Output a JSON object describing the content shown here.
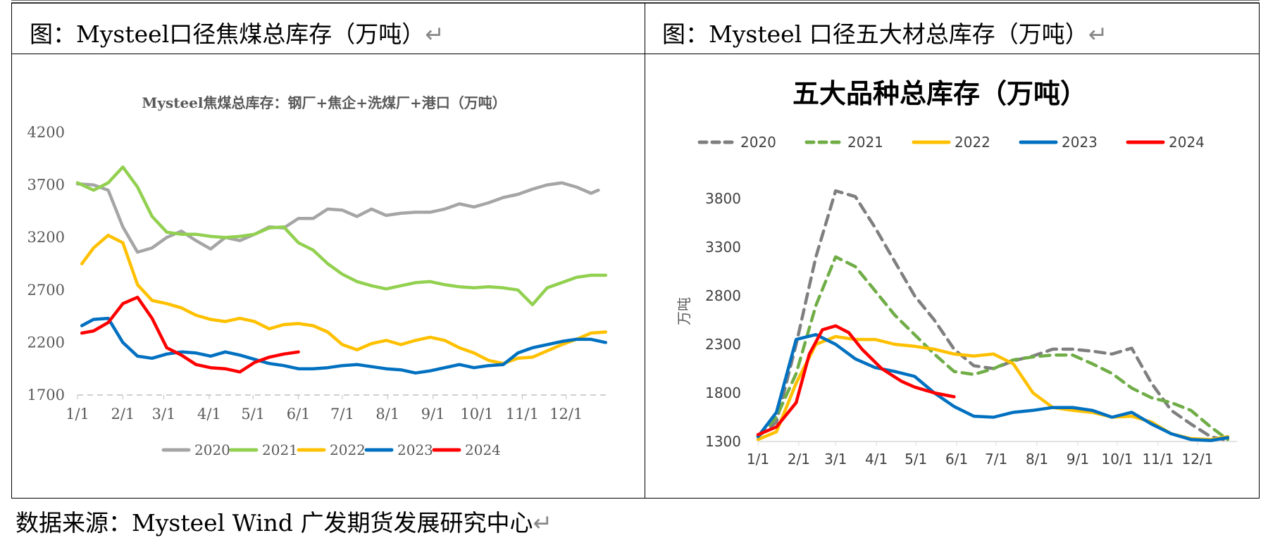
{
  "captions": {
    "left": "图：Mysteel口径焦煤总库存（万吨）",
    "right": "图：Mysteel 口径五大材总库存（万吨）",
    "source": "数据来源：Mysteel Wind 广发期货发展研究中心"
  },
  "return_mark": "↵",
  "chart_data": [
    {
      "type": "line",
      "title": "Mysteel焦煤总库存：钢厂+焦企+洗煤厂+港口（万吨）",
      "xlabel": "",
      "ylabel": "",
      "ylim": [
        1700,
        4200
      ],
      "yticks": [
        "4200",
        "3700",
        "3200",
        "2700",
        "2200",
        "1700"
      ],
      "xticks": [
        "1/1",
        "2/1",
        "3/1",
        "4/1",
        "5/1",
        "6/1",
        "7/1",
        "8/1",
        "9/1",
        "10/1",
        "11/1",
        "12/1"
      ],
      "grid": false,
      "legend": "bottom",
      "series": [
        {
          "name": "2020",
          "color": "#a5a5a5",
          "dash": false,
          "x": [
            1,
            12,
            22,
            32,
            42,
            52,
            62,
            72,
            82,
            92,
            102,
            112,
            122,
            132,
            142,
            152,
            162,
            172,
            182,
            192,
            202,
            212,
            222,
            232,
            242,
            252,
            262,
            272,
            282,
            292,
            302,
            312,
            322,
            332,
            342,
            352,
            357
          ],
          "y": [
            3710,
            3700,
            3650,
            3300,
            3060,
            3100,
            3200,
            3260,
            3170,
            3090,
            3200,
            3170,
            3230,
            3300,
            3290,
            3380,
            3380,
            3470,
            3460,
            3400,
            3470,
            3410,
            3430,
            3440,
            3440,
            3470,
            3520,
            3490,
            3530,
            3580,
            3610,
            3660,
            3700,
            3720,
            3680,
            3620,
            3650
          ]
        },
        {
          "name": "2021",
          "color": "#92d050",
          "dash": false,
          "x": [
            1,
            12,
            22,
            32,
            42,
            52,
            62,
            72,
            82,
            92,
            102,
            112,
            122,
            132,
            142,
            152,
            162,
            172,
            182,
            192,
            202,
            212,
            222,
            232,
            242,
            252,
            262,
            272,
            282,
            292,
            302,
            312,
            322,
            332,
            342,
            352,
            362
          ],
          "y": [
            3720,
            3650,
            3720,
            3870,
            3680,
            3400,
            3250,
            3230,
            3230,
            3210,
            3200,
            3210,
            3230,
            3290,
            3300,
            3150,
            3080,
            2950,
            2850,
            2780,
            2740,
            2710,
            2740,
            2770,
            2780,
            2750,
            2730,
            2720,
            2730,
            2720,
            2700,
            2560,
            2720,
            2770,
            2820,
            2840,
            2840
          ]
        },
        {
          "name": "2022",
          "color": "#ffc000",
          "dash": false,
          "x": [
            4,
            12,
            22,
            32,
            42,
            52,
            62,
            72,
            82,
            92,
            102,
            112,
            122,
            132,
            142,
            152,
            162,
            172,
            182,
            192,
            202,
            212,
            222,
            232,
            242,
            252,
            262,
            272,
            282,
            292,
            302,
            312,
            322,
            332,
            342,
            352,
            362
          ],
          "y": [
            2950,
            3100,
            3220,
            3150,
            2750,
            2600,
            2570,
            2530,
            2460,
            2420,
            2400,
            2430,
            2400,
            2330,
            2370,
            2380,
            2360,
            2300,
            2180,
            2130,
            2190,
            2220,
            2180,
            2220,
            2250,
            2220,
            2150,
            2100,
            2030,
            2000,
            2050,
            2060,
            2120,
            2180,
            2230,
            2290,
            2300
          ]
        },
        {
          "name": "2023",
          "color": "#0070c0",
          "dash": false,
          "x": [
            4,
            12,
            22,
            32,
            42,
            52,
            62,
            72,
            82,
            92,
            102,
            112,
            122,
            132,
            142,
            152,
            162,
            172,
            182,
            192,
            202,
            212,
            222,
            232,
            242,
            252,
            262,
            272,
            282,
            292,
            302,
            312,
            322,
            332,
            342,
            352,
            362
          ],
          "y": [
            2360,
            2420,
            2430,
            2200,
            2070,
            2050,
            2090,
            2110,
            2100,
            2070,
            2110,
            2080,
            2040,
            2000,
            1980,
            1950,
            1950,
            1960,
            1980,
            1990,
            1970,
            1950,
            1940,
            1910,
            1930,
            1960,
            1990,
            1960,
            1980,
            1990,
            2100,
            2150,
            2180,
            2210,
            2230,
            2230,
            2200
          ]
        },
        {
          "name": "2024",
          "color": "#ff0000",
          "dash": false,
          "x": [
            4,
            12,
            22,
            32,
            42,
            52,
            62,
            72,
            82,
            92,
            102,
            112,
            122,
            132,
            142,
            152
          ],
          "y": [
            2290,
            2310,
            2390,
            2570,
            2630,
            2430,
            2150,
            2080,
            1990,
            1960,
            1950,
            1920,
            2010,
            2060,
            2090,
            2110
          ]
        }
      ]
    },
    {
      "type": "line",
      "title": "五大品种总库存（万吨）",
      "xlabel": "",
      "ylabel": "万吨",
      "ylim": [
        1300,
        3800
      ],
      "yticks": [
        "3800",
        "3300",
        "2800",
        "2300",
        "1800",
        "1300"
      ],
      "xticks": [
        "1/1",
        "2/1",
        "3/1",
        "4/1",
        "5/1",
        "6/1",
        "7/1",
        "8/1",
        "9/1",
        "10/1",
        "11/1",
        "12/1"
      ],
      "grid": false,
      "legend": "top",
      "series": [
        {
          "name": "2020",
          "color": "#7f7f7f",
          "dash": true,
          "x": [
            1,
            15,
            30,
            45,
            60,
            75,
            90,
            105,
            120,
            135,
            150,
            165,
            180,
            195,
            210,
            225,
            240,
            255,
            270,
            285,
            300,
            315,
            330,
            345,
            358
          ],
          "y": [
            1350,
            1500,
            2300,
            3200,
            3880,
            3820,
            3500,
            3150,
            2800,
            2550,
            2250,
            2080,
            2050,
            2130,
            2180,
            2250,
            2250,
            2230,
            2200,
            2260,
            1900,
            1620,
            1480,
            1350,
            1310
          ]
        },
        {
          "name": "2021",
          "color": "#70ad47",
          "dash": true,
          "x": [
            1,
            15,
            30,
            45,
            60,
            75,
            90,
            105,
            120,
            135,
            150,
            165,
            180,
            195,
            210,
            225,
            240,
            255,
            270,
            285,
            300,
            315,
            330,
            345,
            358
          ],
          "y": [
            1350,
            1550,
            2000,
            2700,
            3200,
            3100,
            2850,
            2600,
            2400,
            2200,
            2020,
            1990,
            2050,
            2140,
            2170,
            2190,
            2190,
            2100,
            2000,
            1850,
            1750,
            1700,
            1620,
            1450,
            1320
          ]
        },
        {
          "name": "2022",
          "color": "#ffc000",
          "dash": false,
          "x": [
            1,
            15,
            30,
            45,
            60,
            75,
            90,
            105,
            120,
            135,
            150,
            165,
            180,
            195,
            210,
            225,
            240,
            255,
            270,
            285,
            300,
            315,
            330,
            345,
            358
          ],
          "y": [
            1320,
            1400,
            1900,
            2300,
            2380,
            2350,
            2350,
            2300,
            2280,
            2250,
            2200,
            2180,
            2200,
            2100,
            1800,
            1650,
            1620,
            1600,
            1550,
            1560,
            1500,
            1380,
            1330,
            1320,
            1350
          ]
        },
        {
          "name": "2023",
          "color": "#0070c0",
          "dash": false,
          "x": [
            1,
            15,
            30,
            45,
            60,
            75,
            90,
            105,
            120,
            135,
            150,
            165,
            180,
            195,
            210,
            225,
            240,
            255,
            270,
            285,
            300,
            315,
            330,
            345,
            358
          ],
          "y": [
            1350,
            1600,
            2350,
            2400,
            2300,
            2150,
            2060,
            2020,
            1970,
            1800,
            1660,
            1560,
            1550,
            1600,
            1620,
            1650,
            1650,
            1620,
            1550,
            1600,
            1480,
            1380,
            1320,
            1310,
            1340
          ]
        },
        {
          "name": "2024",
          "color": "#ff0000",
          "dash": false,
          "x": [
            1,
            15,
            30,
            40,
            50,
            60,
            70,
            80,
            95,
            110,
            120,
            135,
            150
          ],
          "y": [
            1370,
            1450,
            1700,
            2200,
            2450,
            2490,
            2420,
            2250,
            2050,
            1920,
            1860,
            1800,
            1760
          ]
        }
      ]
    }
  ]
}
